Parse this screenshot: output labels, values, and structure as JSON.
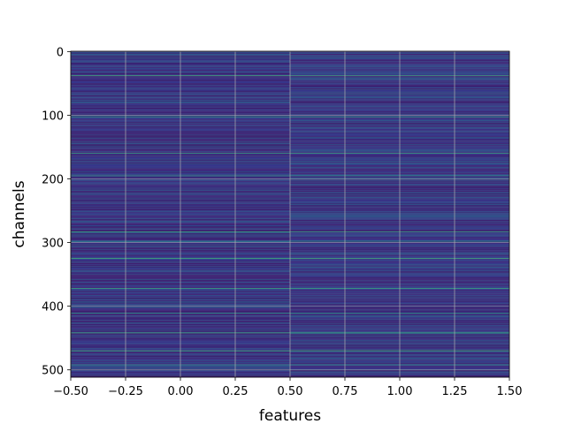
{
  "chart_data": {
    "type": "heatmap",
    "title": "",
    "xlabel": "features",
    "ylabel": "channels",
    "columns": [
      0,
      1
    ],
    "xlim": [
      -0.5,
      1.5
    ],
    "ylim": [
      511.5,
      -0.5
    ],
    "n_rows": 512,
    "y_inverted": true,
    "grid": true,
    "colormap": "viridis",
    "xticks": [
      "−0.50",
      "−0.25",
      "0.00",
      "0.25",
      "0.50",
      "0.75",
      "1.00",
      "1.25",
      "1.50"
    ],
    "yticks": [
      "0",
      "100",
      "200",
      "300",
      "400",
      "500"
    ],
    "highlight_rows": [
      {
        "row": 38,
        "color": "#45b07a"
      },
      {
        "row": 103,
        "color": "#2f9a8a"
      },
      {
        "row": 160,
        "color": "#3aa57f"
      },
      {
        "row": 195,
        "color": "#2e8f8c"
      },
      {
        "row": 283,
        "color": "#3eaa7c"
      },
      {
        "row": 298,
        "color": "#2a8b8c"
      },
      {
        "row": 325,
        "color": "#45b07a"
      },
      {
        "row": 372,
        "color": "#3aa57f"
      },
      {
        "row": 411,
        "color": "#2f9a8a"
      },
      {
        "row": 442,
        "color": "#3eaa7c"
      },
      {
        "row": 470,
        "color": "#45b07a"
      },
      {
        "row": 492,
        "color": "#2e8f8c"
      }
    ]
  }
}
